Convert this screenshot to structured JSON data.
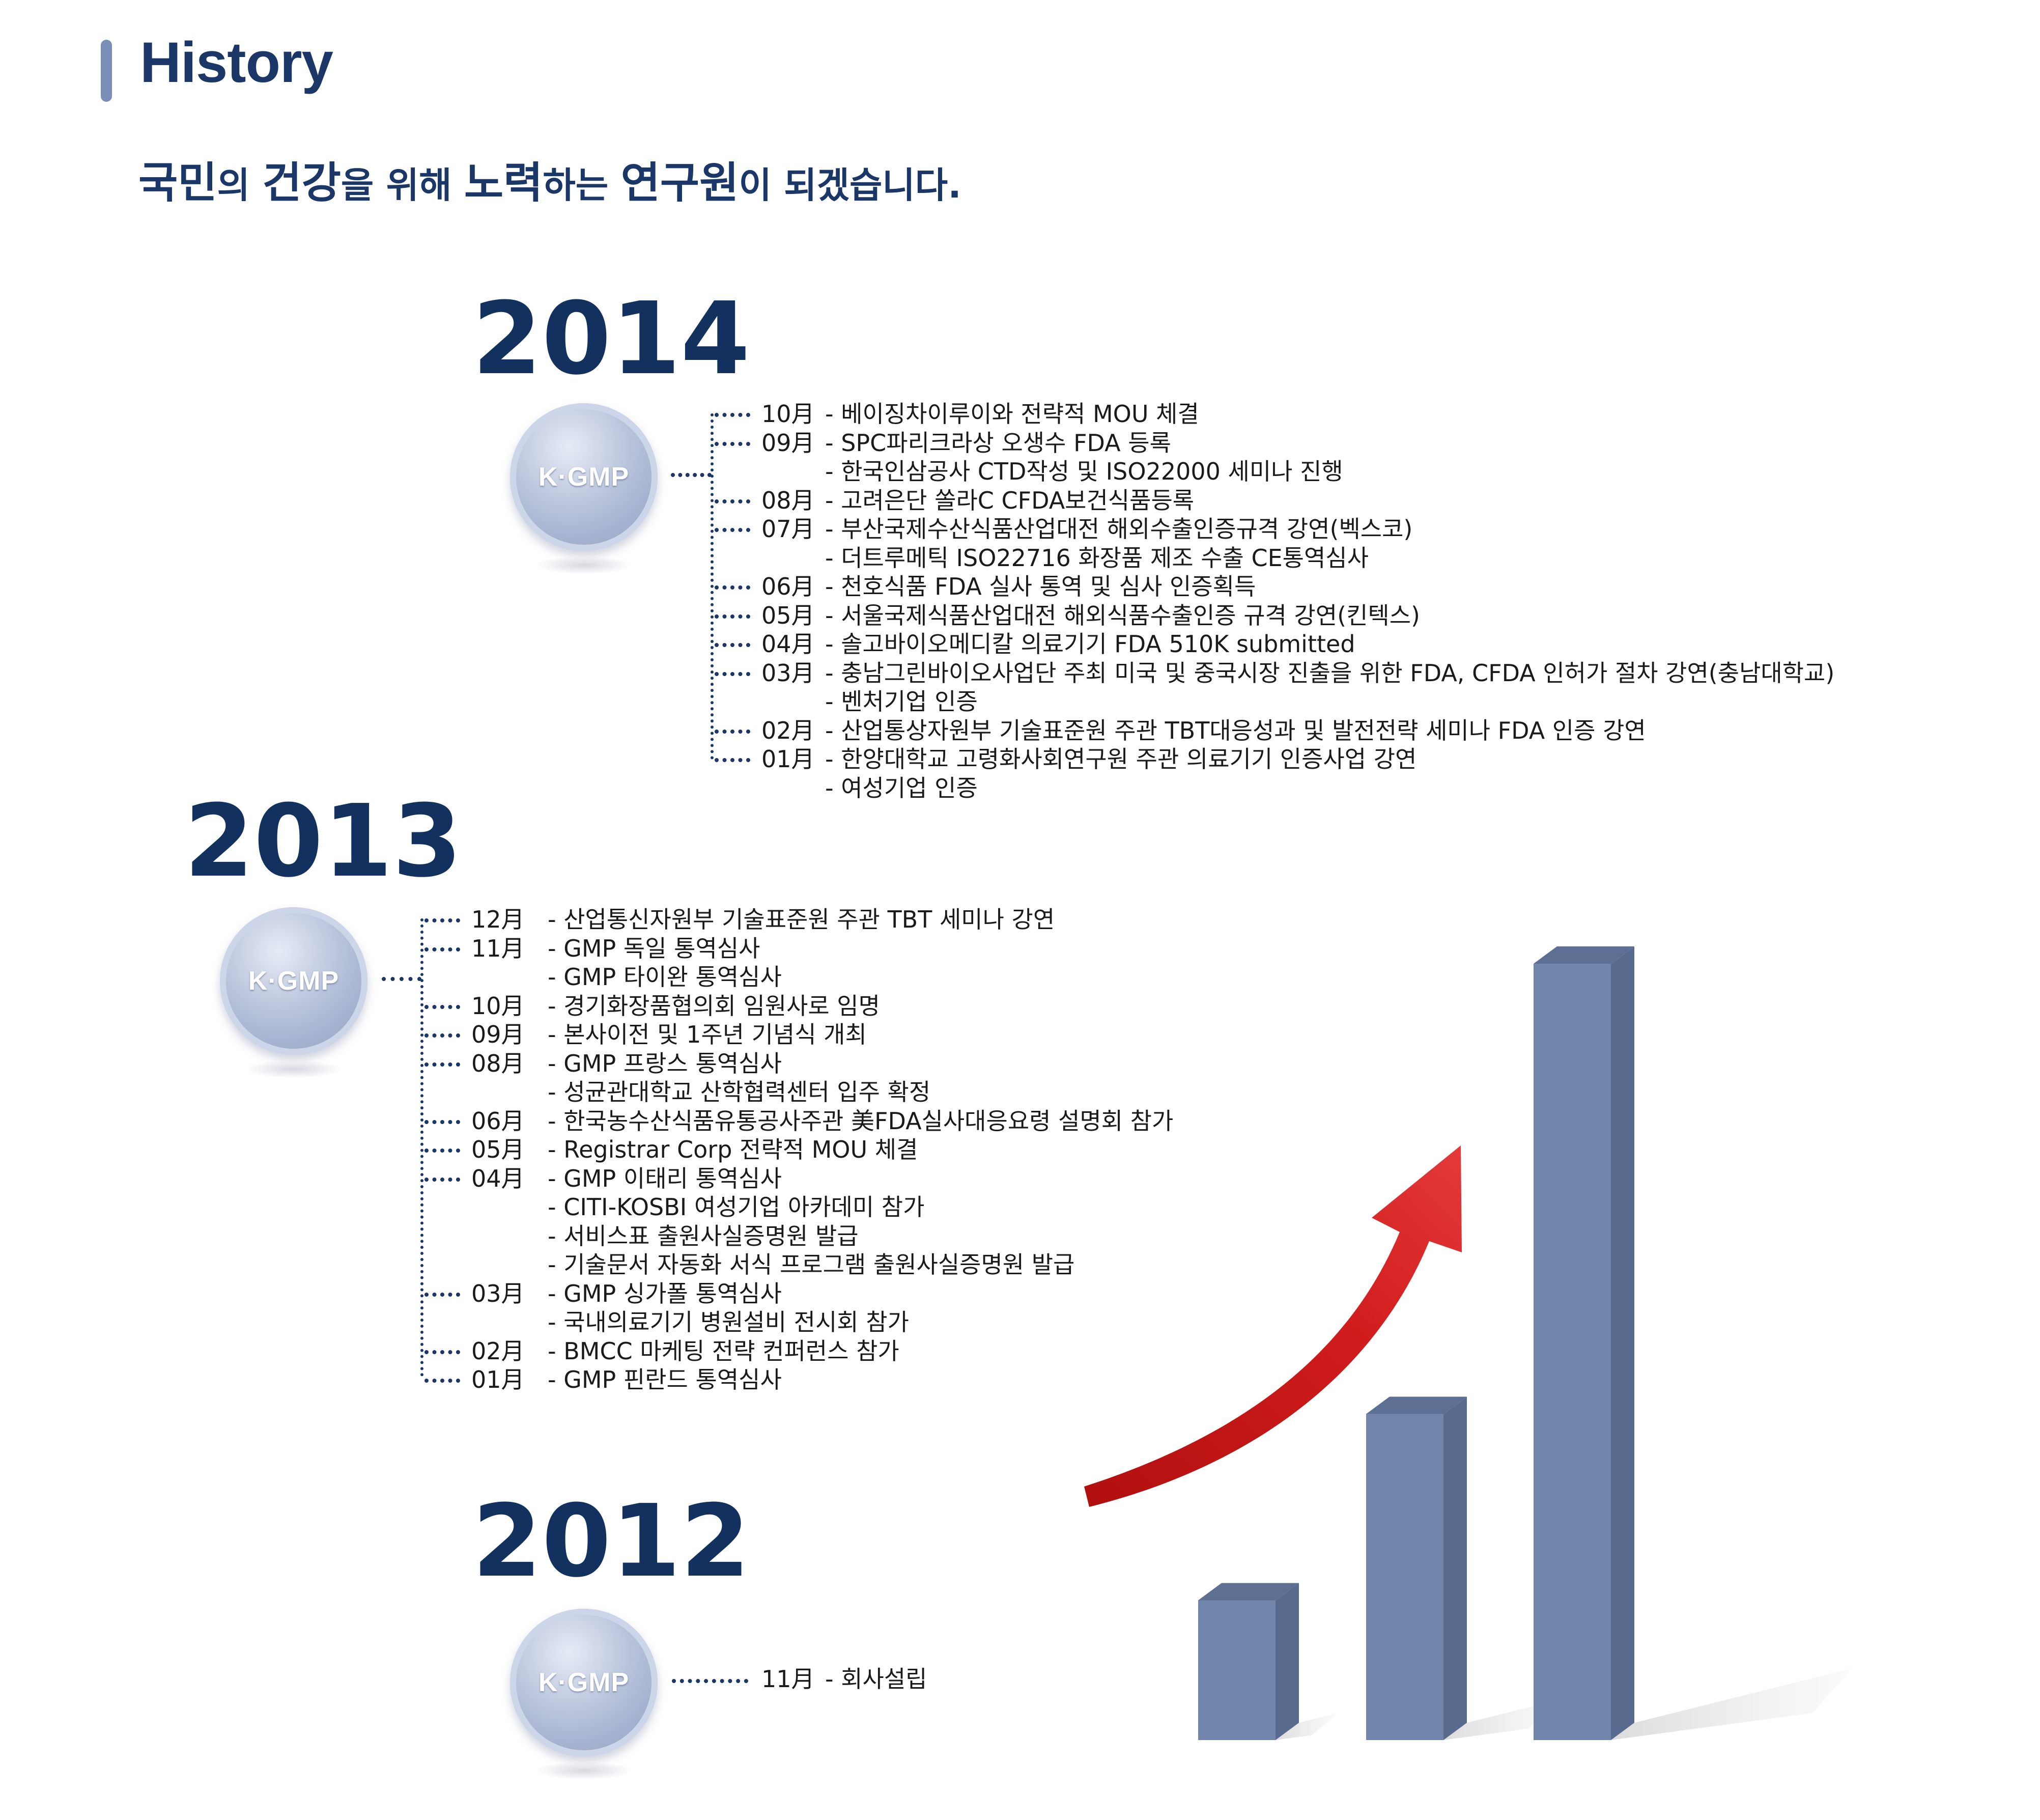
{
  "header": {
    "title": "History",
    "slogan": [
      {
        "text": "국민",
        "big": true
      },
      {
        "text": "의 ",
        "big": false
      },
      {
        "text": "건강",
        "big": true
      },
      {
        "text": "을 위해 ",
        "big": false
      },
      {
        "text": "노력",
        "big": true
      },
      {
        "text": "하는 ",
        "big": false
      },
      {
        "text": "연구원",
        "big": true
      },
      {
        "text": "이 되겠습니다.",
        "big": false
      }
    ]
  },
  "badge_label": "K·GMP",
  "timeline": [
    {
      "year": "2014",
      "entries": [
        {
          "month": "10月",
          "text": "- 베이징차이루이와 전략적  MOU 체결"
        },
        {
          "month": "09月",
          "text": "- SPC파리크라상 오생수 FDA 등록"
        },
        {
          "month": "",
          "text": "- 한국인삼공사 CTD작성 및 ISO22000 세미나 진행"
        },
        {
          "month": "08月",
          "text": "- 고려은단 쏠라C CFDA보건식품등록"
        },
        {
          "month": "07月",
          "text": "- 부산국제수산식품산업대전 해외수출인증규격 강연(벡스코)"
        },
        {
          "month": "",
          "text": "- 더트루메틱 ISO22716 화장품 제조 수출 CE통역심사"
        },
        {
          "month": "06月",
          "text": "- 천호식품 FDA 실사 통역 및 심사 인증획득"
        },
        {
          "month": "05月",
          "text": "- 서울국제식품산업대전 해외식품수출인증 규격 강연(킨텍스)"
        },
        {
          "month": "04月",
          "text": "- 솔고바이오메디칼 의료기기 FDA 510K submitted"
        },
        {
          "month": "03月",
          "text": "- 충남그린바이오사업단 주최 미국 및 중국시장 진출을 위한 FDA, CFDA 인허가 절차 강연(충남대학교)"
        },
        {
          "month": "",
          "text": "- 벤처기업 인증"
        },
        {
          "month": "02月",
          "text": "- 산업통상자원부 기술표준원 주관 TBT대응성과 및 발전전략 세미나 FDA 인증 강연"
        },
        {
          "month": "01月",
          "text": "- 한양대학교 고령화사회연구원 주관 의료기기 인증사업 강연"
        },
        {
          "month": "",
          "text": "- 여성기업 인증"
        }
      ]
    },
    {
      "year": "2013",
      "entries": [
        {
          "month": "12月",
          "text": "- 산업통신자원부 기술표준원 주관 TBT 세미나 강연"
        },
        {
          "month": "11月",
          "text": "- GMP 독일 통역심사"
        },
        {
          "month": "",
          "text": "- GMP 타이완 통역심사"
        },
        {
          "month": "10月",
          "text": "- 경기화장품협의회 임원사로 임명"
        },
        {
          "month": "09月",
          "text": "- 본사이전 및 1주년 기념식 개최"
        },
        {
          "month": "08月",
          "text": "- GMP 프랑스 통역심사"
        },
        {
          "month": "",
          "text": "- 성균관대학교 산학협력센터 입주 확정"
        },
        {
          "month": "06月",
          "text": "- 한국농수산식품유통공사주관 美FDA실사대응요령 설명회 참가"
        },
        {
          "month": "05月",
          "text": "- Registrar Corp 전략적 MOU 체결"
        },
        {
          "month": "04月",
          "text": "- GMP 이태리 통역심사"
        },
        {
          "month": "",
          "text": "- CITI-KOSBI 여성기업 아카데미 참가"
        },
        {
          "month": "",
          "text": "- 서비스표 출원사실증명원 발급"
        },
        {
          "month": "",
          "text": "- 기술문서 자동화 서식 프로그램 출원사실증명원 발급"
        },
        {
          "month": "03月",
          "text": "- GMP 싱가폴 통역심사"
        },
        {
          "month": "",
          "text": "- 국내의료기기 병원설비 전시회 참가"
        },
        {
          "month": "02月",
          "text": "- BMCC 마케팅 전략 컨퍼런스 참가"
        },
        {
          "month": "01月",
          "text": "- GMP 핀란드 통역심사"
        }
      ]
    },
    {
      "year": "2012",
      "entries": [
        {
          "month": "11月",
          "text": "- 회사설립"
        }
      ]
    }
  ],
  "growth_graphic": {
    "bar_levels": [
      0.18,
      0.42,
      1.0
    ],
    "bar_color": "#7285aa",
    "arrow_color": "#c41a1a"
  }
}
